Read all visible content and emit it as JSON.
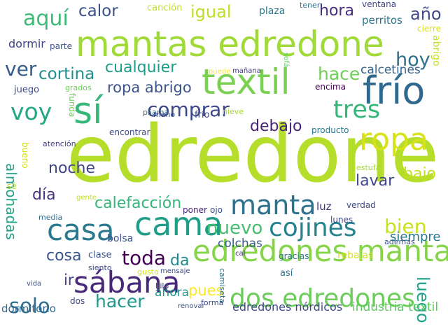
{
  "word_cloud": {
    "words": [
      {
        "text": "edredone",
        "color": "#b5de2b"
      },
      {
        "text": "mantas edredone",
        "color": "#a0da39"
      },
      {
        "text": "frío",
        "color": "#31688e"
      },
      {
        "text": "textil",
        "color": "#7ad151"
      },
      {
        "text": "sí",
        "color": "#35b779"
      },
      {
        "text": "ropa",
        "color": "#d8e219"
      },
      {
        "text": "edredones manta",
        "color": "#86d549"
      },
      {
        "text": "cama",
        "color": "#1f9e89"
      },
      {
        "text": "casa",
        "color": "#2a788e"
      },
      {
        "text": "sábana",
        "color": "#482878"
      },
      {
        "text": "dos edredones",
        "color": "#6ccd5a"
      },
      {
        "text": "voy",
        "color": "#22a884"
      },
      {
        "text": "manta",
        "color": "#2c728e"
      },
      {
        "text": "cojines",
        "color": "#26828e"
      },
      {
        "text": "tres",
        "color": "#35b779"
      },
      {
        "text": "aquí",
        "color": "#3bbb75"
      },
      {
        "text": "comprar",
        "color": "#3e4989"
      },
      {
        "text": "bien",
        "color": "#cae11f"
      },
      {
        "text": "nuevo",
        "color": "#46c06f"
      },
      {
        "text": "solo",
        "color": "#2f6c8e"
      },
      {
        "text": "luego",
        "color": "#1fa088"
      },
      {
        "text": "toda",
        "color": "#440154"
      },
      {
        "text": "hacer",
        "color": "#1f988b"
      },
      {
        "text": "ver",
        "color": "#365c8d"
      },
      {
        "text": "cortina",
        "color": "#21908d"
      },
      {
        "text": "igual",
        "color": "#bddf26"
      },
      {
        "text": "hoy",
        "color": "#2d708e"
      },
      {
        "text": "hace",
        "color": "#6ece58"
      },
      {
        "text": "calor",
        "color": "#3b528b"
      },
      {
        "text": "cualquier",
        "color": "#1e9c89"
      },
      {
        "text": "año",
        "color": "#3e4a89"
      },
      {
        "text": "hora",
        "color": "#472f7d"
      },
      {
        "text": "día",
        "color": "#46337f"
      },
      {
        "text": "calefacción",
        "color": "#35b779"
      },
      {
        "text": "ropa abrigo",
        "color": "#3b528b"
      },
      {
        "text": "debajo",
        "color": "#482475"
      },
      {
        "text": "noche",
        "color": "#404688"
      },
      {
        "text": "lavar",
        "color": "#3f4788"
      },
      {
        "text": "bajo",
        "color": "#c2df23"
      },
      {
        "text": "cosa",
        "color": "#39568c"
      },
      {
        "text": "da",
        "color": "#23888e"
      },
      {
        "text": "ir",
        "color": "#424086"
      },
      {
        "text": "pues",
        "color": "#fde725"
      },
      {
        "text": "almohadas",
        "color": "#20a486"
      },
      {
        "text": "calcetines",
        "color": "#33638d"
      },
      {
        "text": "siempre",
        "color": "#2a788e"
      },
      {
        "text": "colchas",
        "color": "#365d8d"
      },
      {
        "text": "ahora",
        "color": "#1f988b"
      },
      {
        "text": "dormir",
        "color": "#414487"
      },
      {
        "text": "luz",
        "color": "#46327e"
      },
      {
        "text": "bolsa",
        "color": "#3b528b"
      },
      {
        "text": "edredones nórdicos",
        "color": "#3e4a89"
      },
      {
        "text": "industria textil",
        "color": "#5ec962"
      },
      {
        "text": "dormitorio",
        "color": "#31688e"
      },
      {
        "text": "ventana",
        "color": "#3f4788"
      },
      {
        "text": "perritos",
        "color": "#2a788e"
      },
      {
        "text": "cierre",
        "color": "#d8e219"
      },
      {
        "text": "abrigo",
        "color": "#c8e020"
      },
      {
        "text": "tener",
        "color": "#2c728e"
      },
      {
        "text": "plaza",
        "color": "#2a788e"
      },
      {
        "text": "canción",
        "color": "#bddf26"
      },
      {
        "text": "parte",
        "color": "#3b528b"
      },
      {
        "text": "puede",
        "color": "#fde725"
      },
      {
        "text": "mañana",
        "color": "#443983"
      },
      {
        "text": "sofá",
        "color": "#5ec962"
      },
      {
        "text": "encima",
        "color": "#440154"
      },
      {
        "text": "juego",
        "color": "#3e4a89"
      },
      {
        "text": "grados",
        "color": "#6ece58"
      },
      {
        "text": "pijama",
        "color": "#31688e"
      },
      {
        "text": "funda",
        "color": "#73d056"
      },
      {
        "text": "mano",
        "color": "#3b528b"
      },
      {
        "text": "nieve",
        "color": "#a5db36"
      },
      {
        "text": "frío",
        "color": "#3e4a89"
      },
      {
        "text": "producto",
        "color": "#2a788e"
      },
      {
        "text": "encontrar",
        "color": "#3e4a89"
      },
      {
        "text": "atención",
        "color": "#433e85"
      },
      {
        "text": "bueno",
        "color": "#d0e11c"
      },
      {
        "text": "estufa",
        "color": "#a0da39"
      },
      {
        "text": "sé",
        "color": "#c2df23"
      },
      {
        "text": "gente",
        "color": "#bddf26"
      },
      {
        "text": "verdad",
        "color": "#3e4a89"
      },
      {
        "text": "media",
        "color": "#2c728e"
      },
      {
        "text": "poner",
        "color": "#482878"
      },
      {
        "text": "ojo",
        "color": "#3b528b"
      },
      {
        "text": "lunes",
        "color": "#3e4a89"
      },
      {
        "text": "clase",
        "color": "#3b528b"
      },
      {
        "text": "además",
        "color": "#3b528b"
      },
      {
        "text": "gracias",
        "color": "#2a788e"
      },
      {
        "text": "rebajas",
        "color": "#d8e219"
      },
      {
        "text": "cal",
        "color": "#46327e"
      },
      {
        "text": "siento",
        "color": "#3e4a89"
      },
      {
        "text": "gusto",
        "color": "#d0e11c"
      },
      {
        "text": "mensaje",
        "color": "#3e4a89"
      },
      {
        "text": "así",
        "color": "#2c728e"
      },
      {
        "text": "vida",
        "color": "#3b528b"
      },
      {
        "text": "kilo",
        "color": "#3e4a89"
      },
      {
        "text": "camiseta",
        "color": "#2a788e"
      },
      {
        "text": "dos",
        "color": "#3e4a89"
      },
      {
        "text": "forma",
        "color": "#3e4a89"
      },
      {
        "text": "renovar",
        "color": "#3b528b"
      }
    ]
  }
}
